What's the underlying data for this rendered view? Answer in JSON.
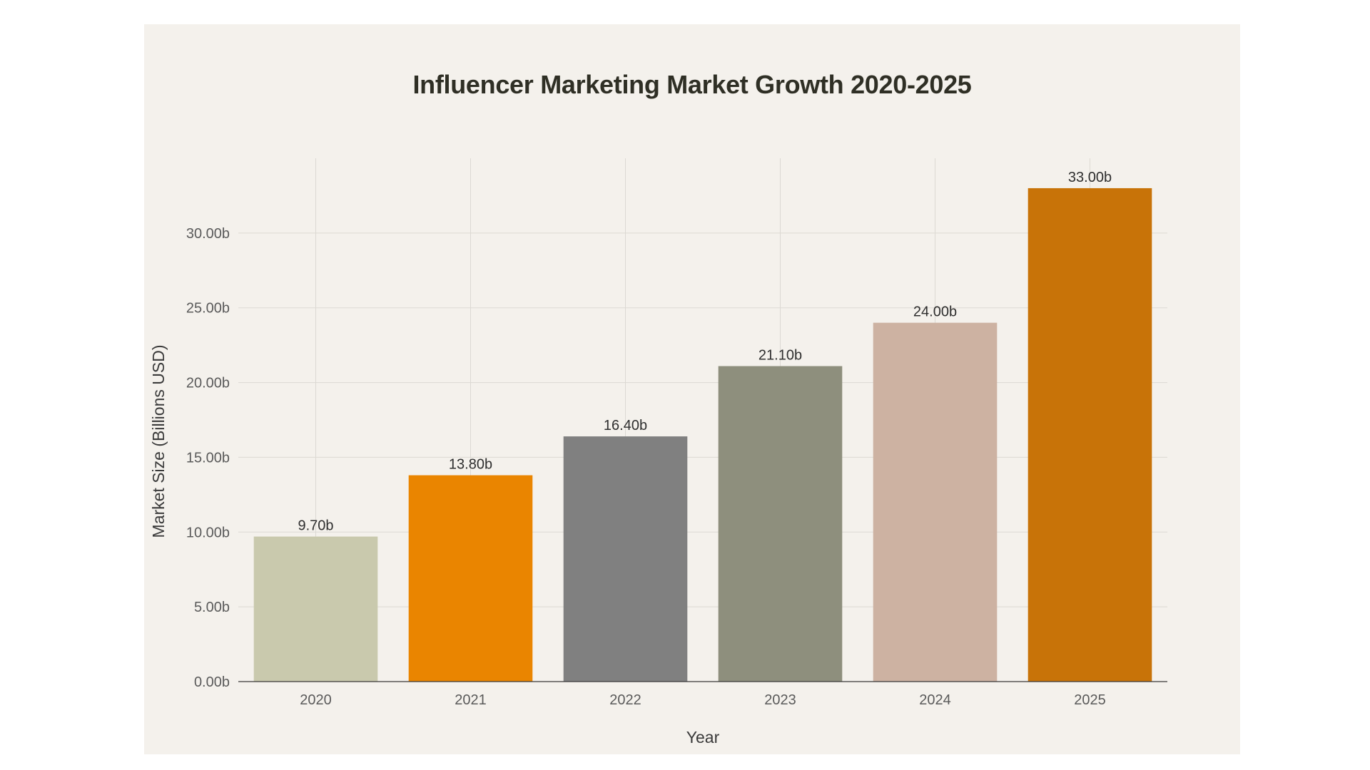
{
  "chart_data": {
    "type": "bar",
    "title": "Influencer Marketing Market Growth 2020-2025",
    "xlabel": "Year",
    "ylabel": "Market Size (Billions USD)",
    "categories": [
      "2020",
      "2021",
      "2022",
      "2023",
      "2024",
      "2025"
    ],
    "values": [
      9.7,
      13.8,
      16.4,
      21.1,
      24.0,
      33.0
    ],
    "value_labels": [
      "9.70b",
      "13.80b",
      "16.40b",
      "21.10b",
      "24.00b",
      "33.00b"
    ],
    "colors": [
      "#c9c9ad",
      "#ea8500",
      "#808080",
      "#8e8f7d",
      "#cdb2a2",
      "#c87308"
    ],
    "ylim": [
      0,
      35
    ],
    "yticks": [
      0,
      5,
      10,
      15,
      20,
      25,
      30
    ],
    "ytick_labels": [
      "0.00b",
      "5.00b",
      "10.00b",
      "15.00b",
      "20.00b",
      "25.00b",
      "30.00b"
    ],
    "grid": true,
    "legend": "none"
  }
}
